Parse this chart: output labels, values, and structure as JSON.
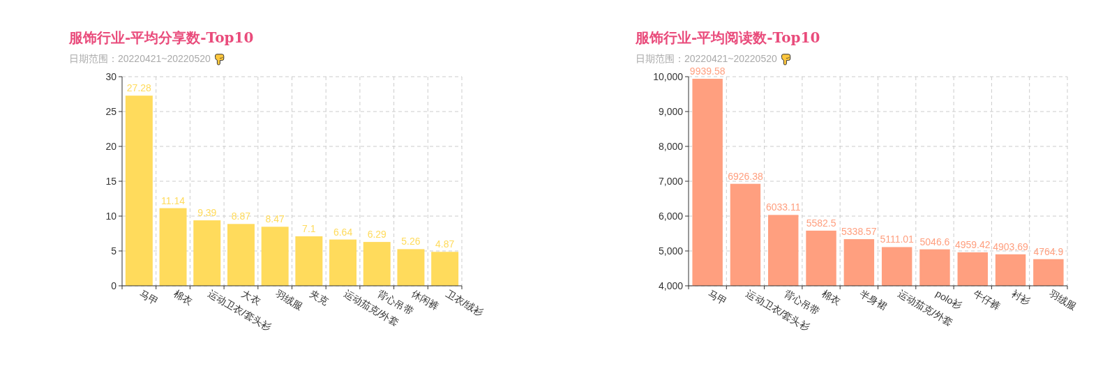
{
  "chart_data": [
    {
      "type": "bar",
      "title": "服饰行业-平均分享数-Top10",
      "subtitle": "日期范围：20220421~20220520",
      "categories": [
        "马甲",
        "棉衣",
        "运动卫衣/套头衫",
        "大衣",
        "羽绒服",
        "夹克",
        "运动茄克/外套",
        "背心吊带",
        "休闲裤",
        "卫衣/绒衫"
      ],
      "values": [
        27.28,
        11.14,
        9.39,
        8.87,
        8.47,
        7.1,
        6.64,
        6.29,
        5.26,
        4.87
      ],
      "color": "#ffdb5c",
      "ylim": [
        0,
        30
      ],
      "yticks": [
        0,
        5,
        10,
        15,
        20,
        25,
        30
      ],
      "grid": true,
      "data_labels": true
    },
    {
      "type": "bar",
      "title": "服饰行业-平均阅读数-Top10",
      "subtitle": "日期范围：20220421~20220520",
      "categories": [
        "马甲",
        "运动卫衣/套头衫",
        "背心吊带",
        "棉衣",
        "半身裙",
        "运动茄克/外套",
        "polo衫",
        "牛仔裤",
        "衬衫",
        "羽绒服"
      ],
      "values": [
        9939.58,
        6926.38,
        6033.11,
        5582.5,
        5338.57,
        5111.01,
        5046.6,
        4959.42,
        4903.69,
        4764.9
      ],
      "color": "#ff9f7f",
      "ylim": [
        4000,
        10000
      ],
      "yticks": [
        {
          "value": 4000,
          "label": "4,000"
        },
        {
          "value": 5000,
          "label": "5,000"
        },
        {
          "value": 6000,
          "label": "6,000"
        },
        {
          "value": 7000,
          "label": "7,000"
        },
        {
          "value": 8000,
          "label": "8,000"
        },
        {
          "value": 9000,
          "label": "9,000"
        },
        {
          "value": 10000,
          "label": "10,000"
        }
      ],
      "grid": true,
      "data_labels": true
    }
  ]
}
